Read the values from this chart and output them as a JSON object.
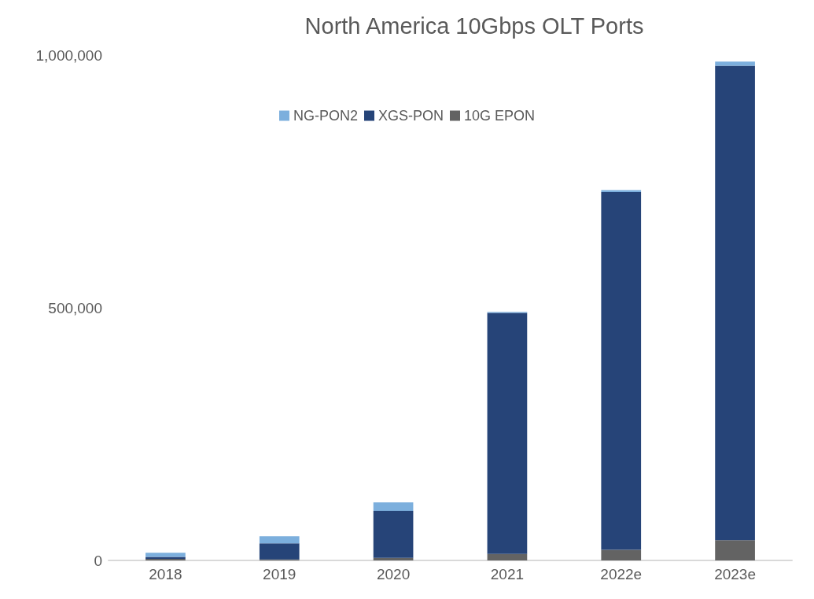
{
  "chart_data": {
    "type": "bar",
    "title": "North America 10Gbps OLT Ports",
    "categories": [
      "2018",
      "2019",
      "2020",
      "2021",
      "2022e",
      "2023e"
    ],
    "stacked": true,
    "legend": "top",
    "grid": false,
    "ylim": [
      0,
      1000000
    ],
    "yticks": [
      {
        "value": 0,
        "label": "0"
      },
      {
        "value": 500000,
        "label": "500,000"
      },
      {
        "value": 1000000,
        "label": "1,000,000"
      }
    ],
    "series": [
      {
        "name": "10G EPON",
        "color": "#636363",
        "values": [
          3000,
          2000,
          5000,
          13000,
          21000,
          40000
        ]
      },
      {
        "name": "XGS-PON",
        "color": "#264478",
        "values": [
          4000,
          32000,
          93000,
          477000,
          708000,
          939000
        ]
      },
      {
        "name": "NG-PON2",
        "color": "#7cafdd",
        "values": [
          8000,
          14000,
          17000,
          2000,
          4000,
          8000
        ]
      }
    ]
  }
}
